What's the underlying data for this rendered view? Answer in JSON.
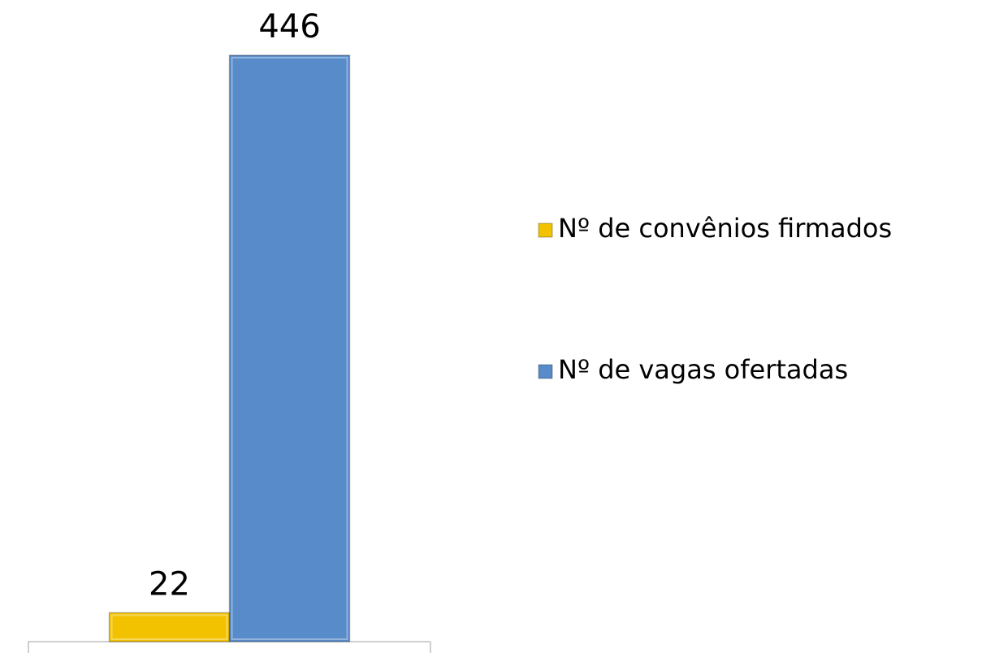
{
  "chart_data": {
    "type": "bar",
    "categories": [
      null
    ],
    "series": [
      {
        "name": "Nº de convênios firmados",
        "color": "#f2c200",
        "values": [
          22
        ]
      },
      {
        "name": "Nº de vagas ofertadas",
        "color": "#588bc9",
        "values": [
          446
        ]
      }
    ],
    "legend": "right"
  }
}
